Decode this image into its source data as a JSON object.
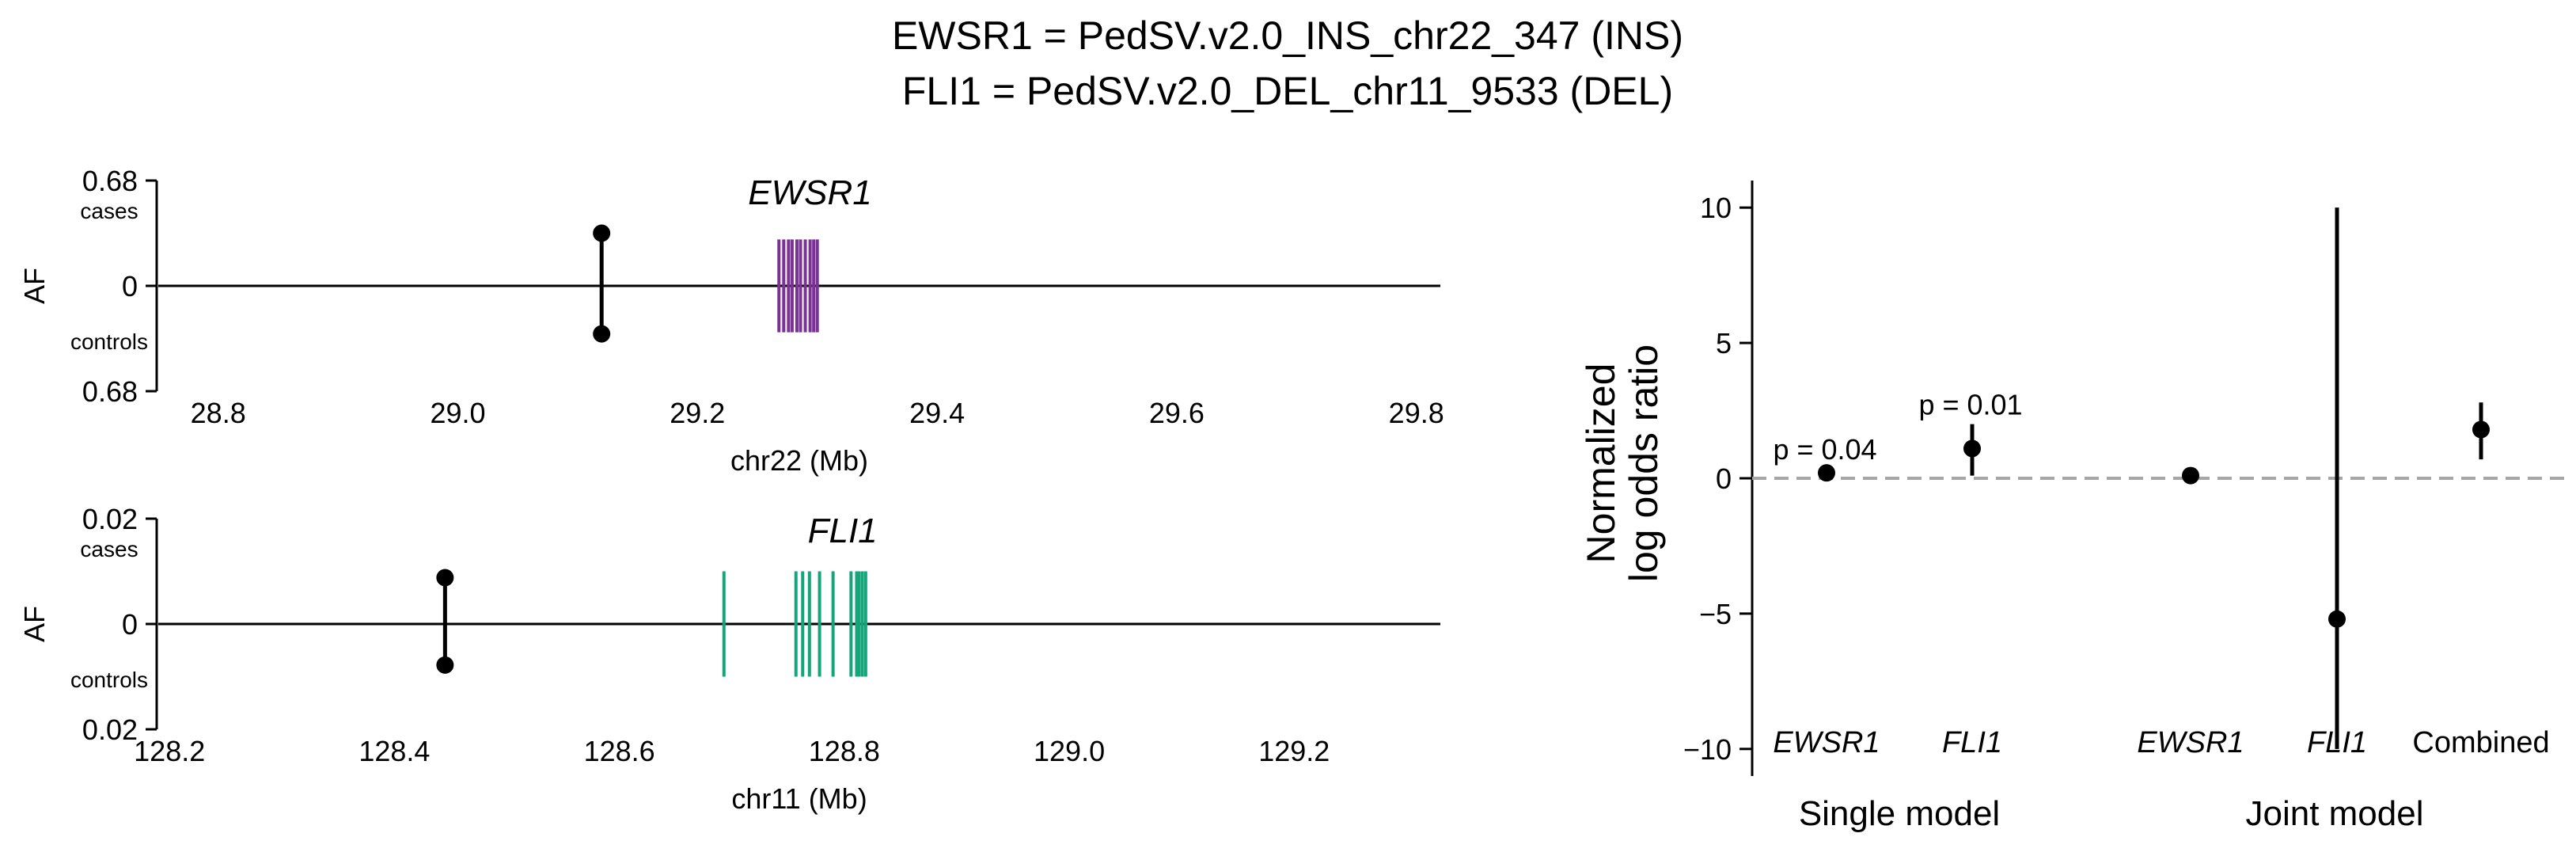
{
  "title_lines": [
    "EWSR1 = PedSV.v2.0_INS_chr22_347 (INS)",
    "FLI1 = PedSV.v2.0_DEL_chr11_9533 (DEL)"
  ],
  "chart_data": [
    {
      "type": "locus",
      "title": "EWSR1",
      "title_style": "italic",
      "gene_color": "#7B3294",
      "xlabel": "chr22 (Mb)",
      "ylabel": "AF",
      "xlim": [
        28.75,
        29.82
      ],
      "xticks": [
        "28.8",
        "29.0",
        "29.2",
        "29.4",
        "29.6",
        "29.8"
      ],
      "ytick_labels": {
        "top": "0.68",
        "middle": "0",
        "bottom": "0.68"
      },
      "yside_labels": {
        "top": "cases",
        "bottom": "controls"
      },
      "af_max": 0.68,
      "variant": {
        "position_mb": 29.12,
        "af_cases": 0.34,
        "af_controls": 0.31
      },
      "exons_mb": [
        29.268,
        29.272,
        29.276,
        29.279,
        29.283,
        29.286,
        29.29,
        29.294,
        29.297,
        29.3
      ],
      "exon_height": 0.3
    },
    {
      "type": "locus",
      "title": "FLI1",
      "title_style": "italic",
      "gene_color": "#14A67A",
      "xlabel": "chr11 (Mb)",
      "ylabel": "AF",
      "xlim": [
        128.19,
        129.33
      ],
      "xticks": [
        "128.2",
        "128.4",
        "128.6",
        "128.8",
        "129.0",
        "129.2"
      ],
      "ytick_labels": {
        "top": "0.02",
        "middle": "0",
        "bottom": "0.02"
      },
      "yside_labels": {
        "top": "cases",
        "bottom": "controls"
      },
      "af_max": 0.02,
      "variant": {
        "position_mb": 128.445,
        "af_cases": 0.0088,
        "af_controls": 0.0078
      },
      "exons_mb": [
        128.693,
        128.757,
        128.763,
        128.769,
        128.778,
        128.79,
        128.806,
        128.811,
        128.813,
        128.816,
        128.819
      ],
      "exon_height": 0.01
    },
    {
      "type": "forest",
      "ylabel_lines": [
        "Normalized",
        "log odds ratio"
      ],
      "ylim": [
        -11,
        11
      ],
      "yticks": [
        10,
        5,
        0,
        -5,
        -10
      ],
      "reference_line": 0,
      "points": [
        {
          "label": "EWSR1",
          "italic": true,
          "group": "Single model",
          "value": 0.2,
          "ci": [
            0.05,
            0.35
          ],
          "pvalue": "p = 0.04"
        },
        {
          "label": "FLI1",
          "italic": true,
          "group": "Single model",
          "value": 1.1,
          "ci": [
            0.1,
            2.0
          ],
          "pvalue": "p = 0.01"
        },
        {
          "label": "EWSR1",
          "italic": true,
          "group": "Joint model",
          "value": 0.1,
          "ci": [
            -0.05,
            0.25
          ],
          "pvalue": ""
        },
        {
          "label": "FLI1",
          "italic": true,
          "group": "Joint model",
          "value": -5.2,
          "ci": [
            -10.0,
            10.0
          ],
          "pvalue": ""
        },
        {
          "label": "Combined",
          "italic": false,
          "group": "Joint model",
          "value": 1.8,
          "ci": [
            0.7,
            2.8
          ],
          "pvalue": ""
        }
      ],
      "groups": [
        "Single model",
        "Joint model"
      ]
    }
  ]
}
